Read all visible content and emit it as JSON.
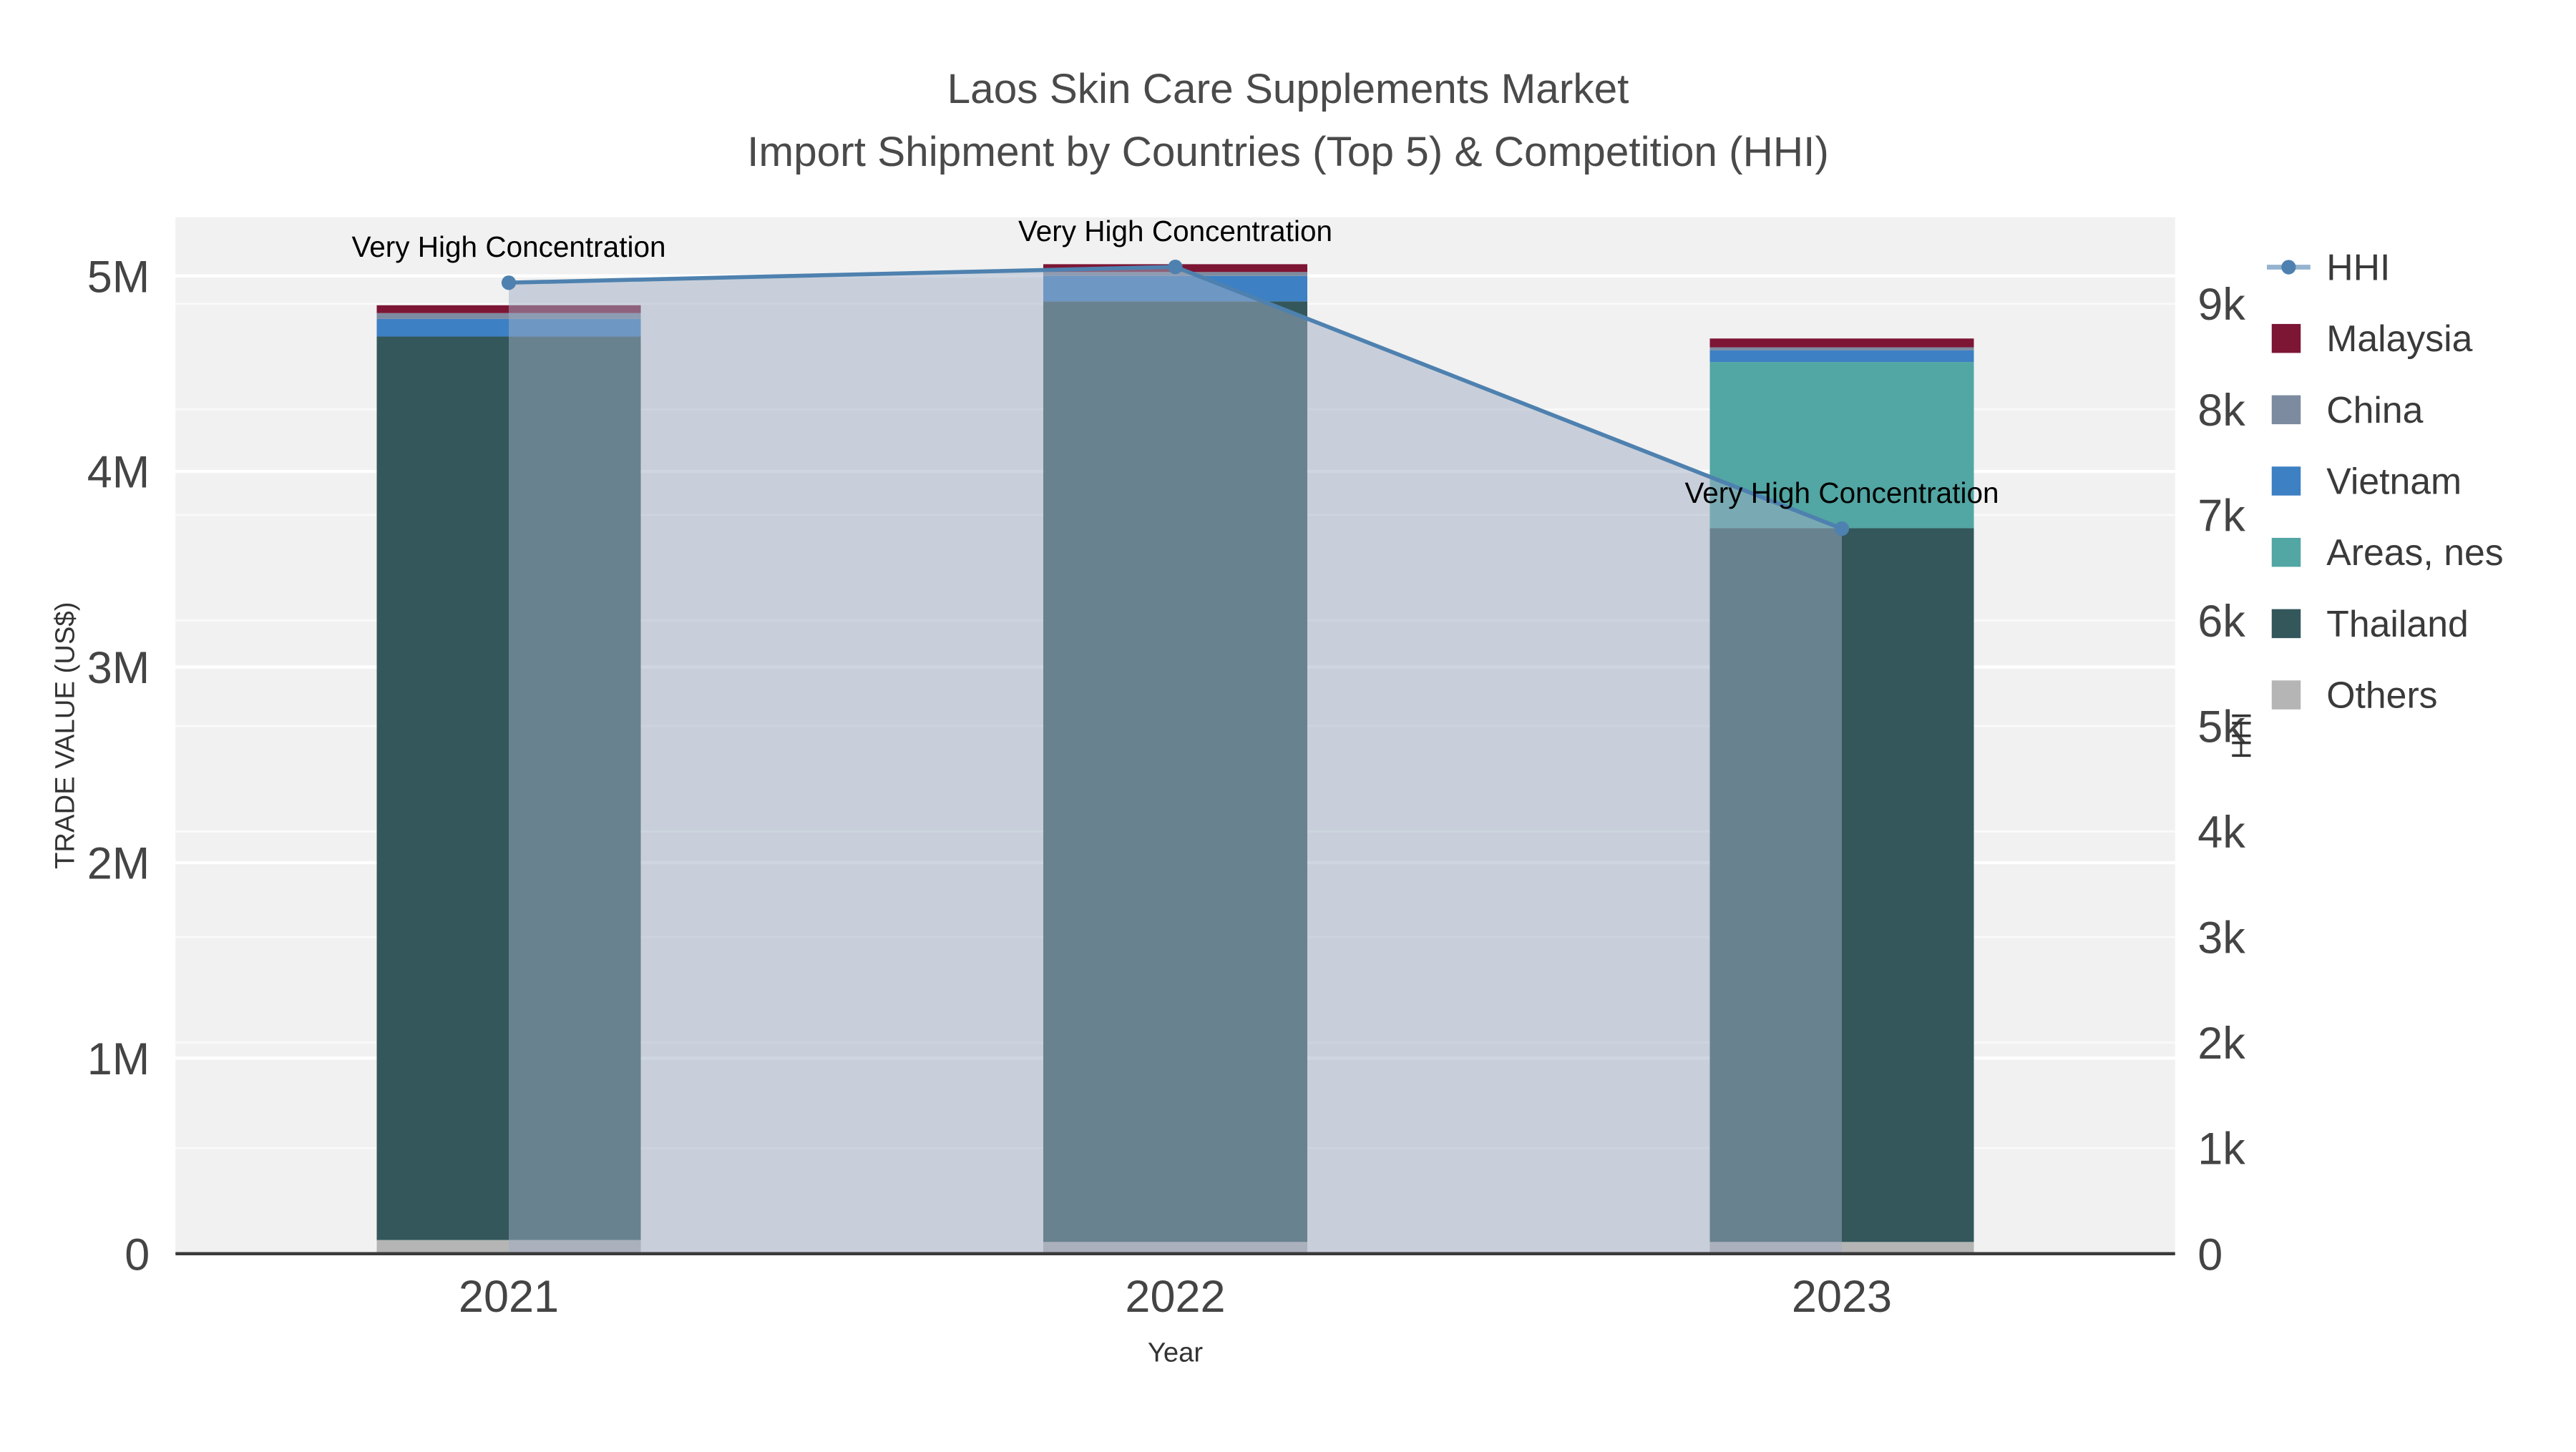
{
  "figure": {
    "title": "Laos Skin Care Supplements Market",
    "subtitle": "Import Shipment by Countries (Top 5) & Competition (HHI)"
  },
  "chart_data": {
    "type": "bar",
    "stacked": true,
    "categories": [
      "2021",
      "2022",
      "2023"
    ],
    "xlabel": "Year",
    "ylabel": "TRADE VALUE (US$)",
    "y2label": "HHI",
    "ylim": [
      0,
      5300000
    ],
    "y2lim": [
      0,
      9820
    ],
    "ytick_values": [
      0,
      1000000,
      2000000,
      3000000,
      4000000,
      5000000
    ],
    "ytick_labels": [
      "0",
      "1M",
      "2M",
      "3M",
      "4M",
      "5M"
    ],
    "y2tick_values": [
      0,
      1000,
      2000,
      3000,
      4000,
      5000,
      6000,
      7000,
      8000,
      9000
    ],
    "y2tick_labels": [
      "0",
      "1k",
      "2k",
      "3k",
      "4k",
      "5k",
      "6k",
      "7k",
      "8k",
      "9k"
    ],
    "series": [
      {
        "name": "Others",
        "color": "#b5b5b5",
        "values": [
          70000,
          60000,
          60000
        ]
      },
      {
        "name": "Thailand",
        "color": "#33575b",
        "values": [
          4620000,
          4810000,
          3650000
        ]
      },
      {
        "name": "Areas, nes",
        "color": "#52a6a3",
        "values": [
          0,
          0,
          850000
        ]
      },
      {
        "name": "Vietnam",
        "color": "#3d80c4",
        "values": [
          90000,
          130000,
          60000
        ]
      },
      {
        "name": "China",
        "color": "#7d8ba0",
        "values": [
          30000,
          20000,
          15000
        ]
      },
      {
        "name": "Malaysia",
        "color": "#7d1535",
        "values": [
          40000,
          40000,
          45000
        ]
      }
    ],
    "hhi_line": {
      "name": "HHI",
      "color": "#4e81af",
      "fill_color": "rgba(160,174,195,0.5)",
      "values": [
        9200,
        9350,
        6870
      ]
    },
    "annotations": [
      "Very High Concentration",
      "Very High Concentration",
      "Very High Concentration"
    ],
    "legend": [
      "HHI",
      "Malaysia",
      "China",
      "Vietnam",
      "Areas, nes",
      "Thailand",
      "Others"
    ],
    "legend_position": "right",
    "plot_bg": "#f1f1f1",
    "grid_color": "#ffffff"
  }
}
